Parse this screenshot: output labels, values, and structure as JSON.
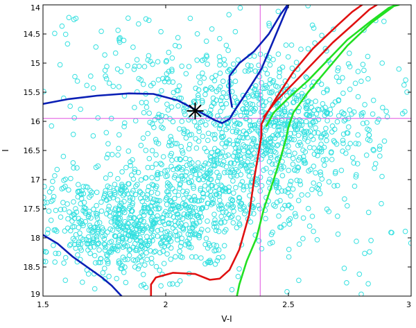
{
  "chart_data": {
    "type": "scatter",
    "title": "",
    "xlabel": "V-I",
    "ylabel": "I",
    "xlim": [
      1.5,
      3.0
    ],
    "ylim": [
      14.0,
      19.0
    ],
    "y_inverted": true,
    "grid": false,
    "x_ticks": [
      {
        "value": 1.5,
        "label": "1.5"
      },
      {
        "value": 2.0,
        "label": "2"
      },
      {
        "value": 2.5,
        "label": "2.5"
      },
      {
        "value": 3.0,
        "label": "3"
      }
    ],
    "y_ticks": [
      {
        "value": 14.0,
        "label": "14"
      },
      {
        "value": 14.5,
        "label": "14.5"
      },
      {
        "value": 15.0,
        "label": "15"
      },
      {
        "value": 15.5,
        "label": "15.5"
      },
      {
        "value": 16.0,
        "label": "16"
      },
      {
        "value": 16.5,
        "label": "16.5"
      },
      {
        "value": 17.0,
        "label": "17"
      },
      {
        "value": 17.5,
        "label": "17.5"
      },
      {
        "value": 18.0,
        "label": "18"
      },
      {
        "value": 18.5,
        "label": "18.5"
      },
      {
        "value": 19.0,
        "label": "19"
      }
    ],
    "colors": {
      "stars": "#33e0e0",
      "isochrone_blue": "#0a1fb5",
      "isochrone_red": "#e01010",
      "isochrone_green": "#22e022",
      "reference_lines": "#e050e0",
      "marker": "#000000"
    },
    "star_clouds": [
      {
        "shape": "ellipse",
        "color_center": 1.85,
        "mag_center": 17.75,
        "color_spread": 0.22,
        "mag_spread": 0.45,
        "count": 700
      },
      {
        "shape": "ellipse",
        "color_center": 2.25,
        "mag_center": 16.9,
        "color_spread": 0.22,
        "mag_spread": 0.55,
        "count": 550
      },
      {
        "shape": "ellipse",
        "color_center": 2.45,
        "mag_center": 16.0,
        "color_spread": 0.2,
        "mag_spread": 0.4,
        "count": 450
      },
      {
        "shape": "ellipse",
        "color_center": 2.2,
        "mag_center": 15.2,
        "color_spread": 0.35,
        "mag_spread": 0.45,
        "count": 200
      },
      {
        "shape": "uniform",
        "color_range": [
          1.5,
          3.0
        ],
        "mag_range": [
          14.0,
          19.0
        ],
        "count": 110
      }
    ],
    "isochrones": [
      {
        "color_key": "isochrone_blue",
        "segments": [
          [
            [
              1.5,
              15.7
            ],
            [
              1.6,
              15.62
            ],
            [
              1.72,
              15.56
            ],
            [
              1.85,
              15.52
            ],
            [
              1.95,
              15.53
            ],
            [
              2.05,
              15.64
            ],
            [
              2.13,
              15.82
            ],
            [
              2.2,
              15.98
            ],
            [
              2.23,
              16.03
            ],
            [
              2.26,
              15.96
            ],
            [
              2.28,
              15.82
            ],
            [
              2.33,
              15.5
            ],
            [
              2.39,
              15.1
            ],
            [
              2.44,
              14.6
            ],
            [
              2.48,
              14.2
            ],
            [
              2.5,
              14.0
            ]
          ],
          [
            [
              2.27,
              15.75
            ],
            [
              2.26,
              15.5
            ],
            [
              2.26,
              15.22
            ],
            [
              2.3,
              15.0
            ],
            [
              2.36,
              14.8
            ],
            [
              2.42,
              14.5
            ],
            [
              2.47,
              14.15
            ],
            [
              2.5,
              13.98
            ]
          ],
          [
            [
              1.5,
              17.95
            ],
            [
              1.56,
              18.1
            ],
            [
              1.62,
              18.32
            ],
            [
              1.68,
              18.5
            ],
            [
              1.74,
              18.68
            ],
            [
              1.78,
              18.82
            ],
            [
              1.82,
              19.0
            ]
          ]
        ]
      },
      {
        "color_key": "isochrone_red",
        "segments": [
          [
            [
              1.94,
              19.0
            ],
            [
              1.94,
              18.8
            ],
            [
              1.96,
              18.68
            ],
            [
              2.03,
              18.6
            ],
            [
              2.12,
              18.62
            ],
            [
              2.18,
              18.72
            ],
            [
              2.22,
              18.7
            ],
            [
              2.26,
              18.55
            ],
            [
              2.3,
              18.2
            ],
            [
              2.34,
              17.6
            ],
            [
              2.36,
              17.0
            ],
            [
              2.38,
              16.5
            ],
            [
              2.39,
              16.25
            ],
            [
              2.39,
              16.05
            ],
            [
              2.41,
              15.88
            ],
            [
              2.45,
              15.6
            ],
            [
              2.52,
              15.15
            ],
            [
              2.6,
              14.75
            ],
            [
              2.7,
              14.35
            ],
            [
              2.76,
              14.12
            ],
            [
              2.8,
              14.0
            ]
          ],
          [
            [
              2.4,
              15.92
            ],
            [
              2.45,
              15.65
            ],
            [
              2.52,
              15.35
            ],
            [
              2.6,
              15.0
            ],
            [
              2.68,
              14.65
            ],
            [
              2.76,
              14.35
            ],
            [
              2.83,
              14.08
            ],
            [
              2.86,
              14.0
            ]
          ]
        ]
      },
      {
        "color_key": "isochrone_green",
        "segments": [
          [
            [
              2.29,
              19.0
            ],
            [
              2.3,
              18.8
            ],
            [
              2.33,
              18.4
            ],
            [
              2.37,
              18.0
            ],
            [
              2.4,
              17.5
            ],
            [
              2.44,
              17.0
            ],
            [
              2.47,
              16.6
            ],
            [
              2.49,
              16.3
            ],
            [
              2.5,
              16.1
            ],
            [
              2.52,
              15.85
            ],
            [
              2.58,
              15.5
            ],
            [
              2.66,
              15.1
            ],
            [
              2.74,
              14.7
            ],
            [
              2.84,
              14.3
            ],
            [
              2.93,
              14.02
            ],
            [
              2.95,
              14.0
            ]
          ],
          [
            [
              2.41,
              16.08
            ],
            [
              2.44,
              15.85
            ],
            [
              2.5,
              15.6
            ],
            [
              2.58,
              15.3
            ],
            [
              2.66,
              14.95
            ],
            [
              2.74,
              14.6
            ],
            [
              2.83,
              14.3
            ],
            [
              2.91,
              14.05
            ],
            [
              2.94,
              14.0
            ]
          ]
        ]
      }
    ],
    "reference_lines": [
      {
        "orientation": "horizontal",
        "value": 15.95
      },
      {
        "orientation": "vertical",
        "value": 2.385
      }
    ],
    "marker": {
      "symbol": "asterisk",
      "x": 2.12,
      "y": 15.82
    }
  }
}
